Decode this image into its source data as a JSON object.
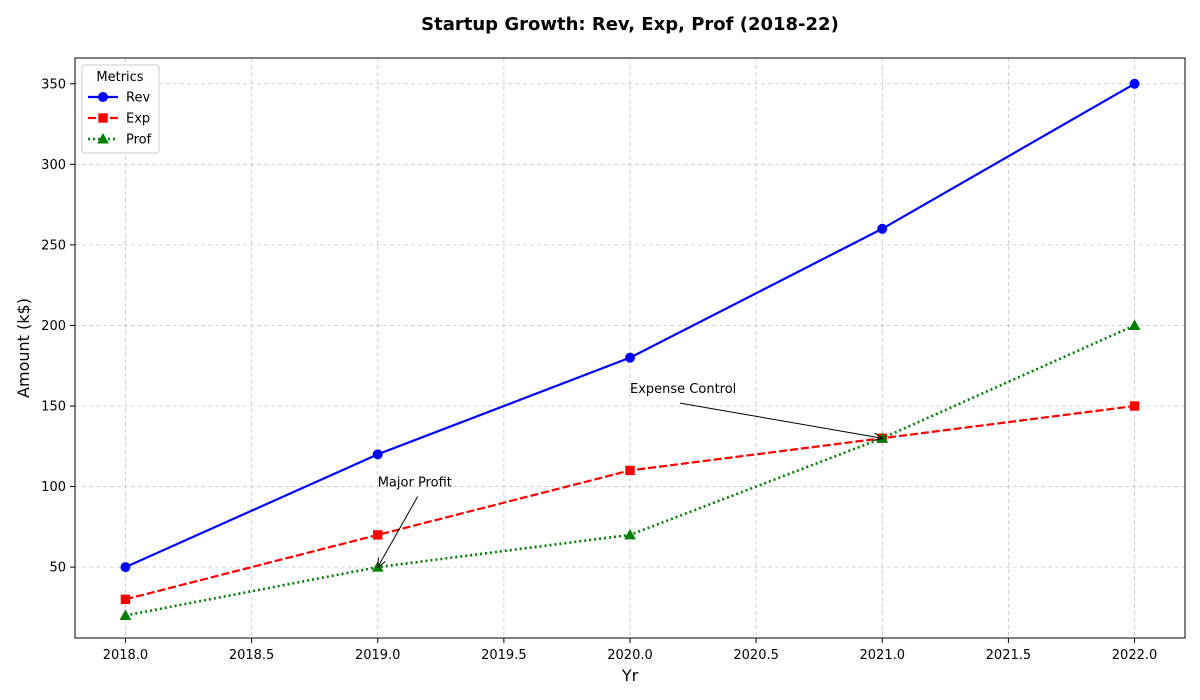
{
  "chart_data": {
    "type": "line",
    "title": "Startup Growth: Rev, Exp, Prof (2018-22)",
    "xlabel": "Yr",
    "ylabel": "Amount (k$)",
    "x": [
      2018,
      2019,
      2020,
      2021,
      2022
    ],
    "xlim": [
      2017.8,
      2022.2
    ],
    "ylim": [
      6,
      366
    ],
    "xticks": [
      2018.0,
      2018.5,
      2019.0,
      2019.5,
      2020.0,
      2020.5,
      2021.0,
      2021.5,
      2022.0
    ],
    "xtick_labels": [
      "2018.0",
      "2018.5",
      "2019.0",
      "2019.5",
      "2020.0",
      "2020.5",
      "2021.0",
      "2021.5",
      "2022.0"
    ],
    "yticks": [
      50,
      100,
      150,
      200,
      250,
      300,
      350
    ],
    "ytick_labels": [
      "50",
      "100",
      "150",
      "200",
      "250",
      "300",
      "350"
    ],
    "grid": true,
    "legend": {
      "title": "Metrics",
      "placement": "top-left"
    },
    "series": [
      {
        "name": "Rev",
        "values": [
          50,
          120,
          180,
          260,
          350
        ],
        "color": "#0000ff",
        "marker": "circle",
        "linestyle": "solid"
      },
      {
        "name": "Exp",
        "values": [
          30,
          70,
          110,
          130,
          150
        ],
        "color": "#ff0000",
        "marker": "square",
        "linestyle": "dashed"
      },
      {
        "name": "Prof",
        "values": [
          20,
          50,
          70,
          130,
          200
        ],
        "color": "#008000",
        "marker": "triangle",
        "linestyle": "dotted"
      }
    ],
    "annotations": [
      {
        "text": "Major Profit",
        "text_x": 2019.0,
        "text_y": 100,
        "point_x": 2019.0,
        "point_y": 50
      },
      {
        "text": "Expense Control",
        "text_x": 2020.0,
        "text_y": 158,
        "point_x": 2021.0,
        "point_y": 130
      }
    ]
  }
}
